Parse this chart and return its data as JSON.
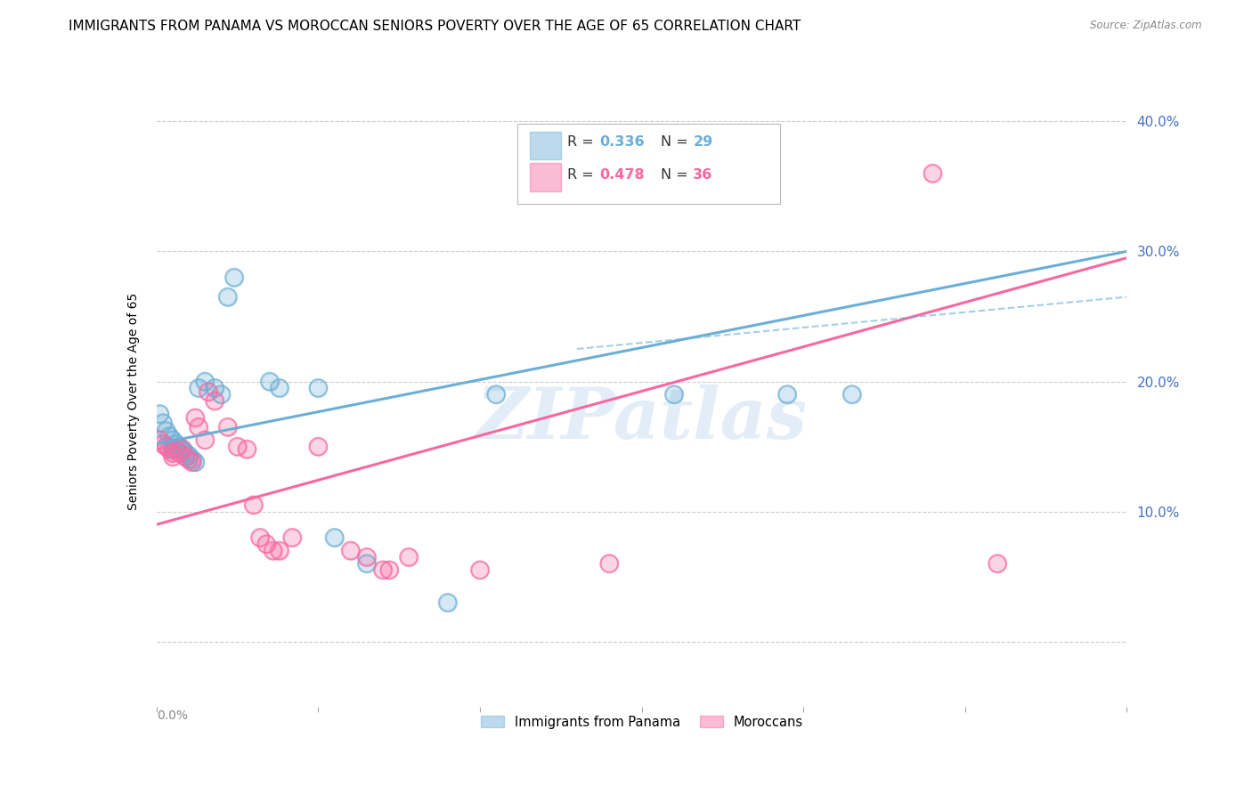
{
  "title": "IMMIGRANTS FROM PANAMA VS MOROCCAN SENIORS POVERTY OVER THE AGE OF 65 CORRELATION CHART",
  "source": "Source: ZipAtlas.com",
  "ylabel": "Seniors Poverty Over the Age of 65",
  "watermark": "ZIPatlas",
  "xlim": [
    0.0,
    0.3
  ],
  "ylim": [
    -0.05,
    0.42
  ],
  "yticks": [
    0.0,
    0.1,
    0.2,
    0.3,
    0.4
  ],
  "ytick_labels": [
    "",
    "10.0%",
    "20.0%",
    "30.0%",
    "40.0%"
  ],
  "panama_R": "0.336",
  "panama_N": "29",
  "morocco_R": "0.478",
  "morocco_N": "36",
  "panama_color": "#6baed6",
  "morocco_color": "#f768a1",
  "panama_scatter": [
    [
      0.001,
      0.175
    ],
    [
      0.002,
      0.168
    ],
    [
      0.003,
      0.162
    ],
    [
      0.004,
      0.158
    ],
    [
      0.005,
      0.155
    ],
    [
      0.005,
      0.148
    ],
    [
      0.006,
      0.152
    ],
    [
      0.007,
      0.15
    ],
    [
      0.008,
      0.148
    ],
    [
      0.009,
      0.145
    ],
    [
      0.01,
      0.143
    ],
    [
      0.011,
      0.14
    ],
    [
      0.012,
      0.138
    ],
    [
      0.013,
      0.195
    ],
    [
      0.015,
      0.2
    ],
    [
      0.018,
      0.195
    ],
    [
      0.02,
      0.19
    ],
    [
      0.022,
      0.265
    ],
    [
      0.024,
      0.28
    ],
    [
      0.035,
      0.2
    ],
    [
      0.038,
      0.195
    ],
    [
      0.05,
      0.195
    ],
    [
      0.055,
      0.08
    ],
    [
      0.065,
      0.06
    ],
    [
      0.09,
      0.03
    ],
    [
      0.105,
      0.19
    ],
    [
      0.16,
      0.19
    ],
    [
      0.195,
      0.19
    ],
    [
      0.215,
      0.19
    ]
  ],
  "morocco_scatter": [
    [
      0.001,
      0.155
    ],
    [
      0.002,
      0.152
    ],
    [
      0.003,
      0.15
    ],
    [
      0.004,
      0.148
    ],
    [
      0.005,
      0.145
    ],
    [
      0.005,
      0.142
    ],
    [
      0.006,
      0.148
    ],
    [
      0.007,
      0.145
    ],
    [
      0.008,
      0.148
    ],
    [
      0.009,
      0.142
    ],
    [
      0.01,
      0.14
    ],
    [
      0.011,
      0.138
    ],
    [
      0.012,
      0.172
    ],
    [
      0.013,
      0.165
    ],
    [
      0.015,
      0.155
    ],
    [
      0.016,
      0.192
    ],
    [
      0.018,
      0.185
    ],
    [
      0.022,
      0.165
    ],
    [
      0.025,
      0.15
    ],
    [
      0.028,
      0.148
    ],
    [
      0.03,
      0.105
    ],
    [
      0.032,
      0.08
    ],
    [
      0.034,
      0.075
    ],
    [
      0.036,
      0.07
    ],
    [
      0.038,
      0.07
    ],
    [
      0.042,
      0.08
    ],
    [
      0.05,
      0.15
    ],
    [
      0.06,
      0.07
    ],
    [
      0.065,
      0.065
    ],
    [
      0.07,
      0.055
    ],
    [
      0.072,
      0.055
    ],
    [
      0.078,
      0.065
    ],
    [
      0.1,
      0.055
    ],
    [
      0.14,
      0.06
    ],
    [
      0.24,
      0.36
    ],
    [
      0.26,
      0.06
    ]
  ],
  "panama_line": [
    [
      0.0,
      0.152
    ],
    [
      0.3,
      0.3
    ]
  ],
  "morocco_line": [
    [
      0.0,
      0.09
    ],
    [
      0.3,
      0.295
    ]
  ],
  "dash_line": [
    [
      0.13,
      0.225
    ],
    [
      0.3,
      0.265
    ]
  ],
  "title_fontsize": 11,
  "axis_label_fontsize": 10,
  "ytick_color": "#4472c4",
  "xtick_color": "#888888",
  "background_color": "#ffffff",
  "grid_color": "#cccccc",
  "legend_color": "#4472c4"
}
